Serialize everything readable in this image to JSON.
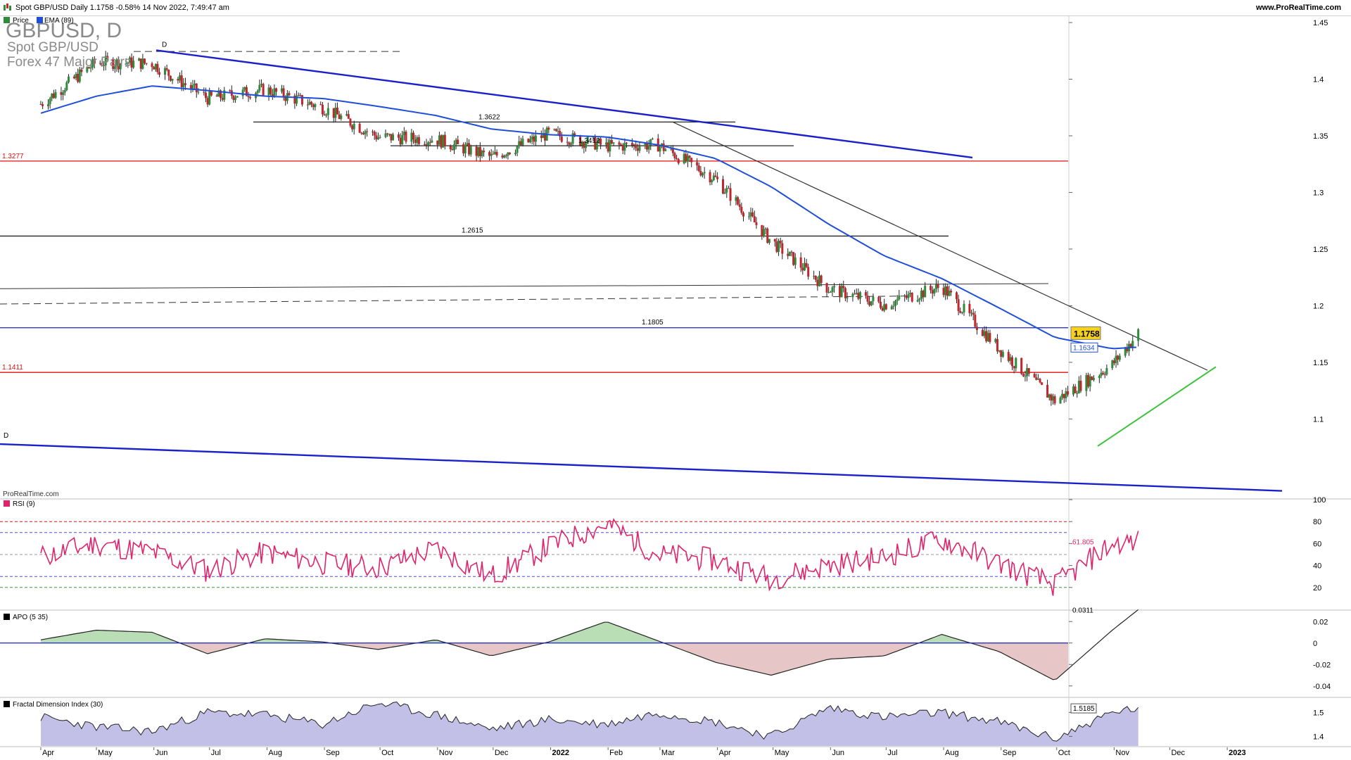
{
  "header": {
    "title": "Spot GBP/USD Daily 1.1758 -0.58% 14 Nov 2022, 7:49:47 am",
    "site": "www.ProRealTime.com"
  },
  "colors": {
    "up_candle": "#2e8b3a",
    "down_candle": "#c0262b",
    "ema": "#1f4fd8",
    "trendline_blue": "#1a21c8",
    "support_red": "#e01010",
    "green_trend": "#3ac23a",
    "rsi": "#e0246c",
    "apo_pos": "#b9ddb5",
    "apo_neg": "#e6c6c6",
    "fdi_fill": "#c2c0e6"
  },
  "chart_data": [
    {
      "type": "line",
      "panel": "price",
      "title_big": "GBPUSD, D",
      "subtitle": "Spot GBP/USD",
      "sub_subtitle": "Forex 47 Major Pairs",
      "legend": [
        {
          "label": "Price",
          "icon": "candle-icon"
        },
        {
          "label": "EMA (89)",
          "color": "#1f4fd8"
        }
      ],
      "x_tick_labels": [
        "Apr",
        "May",
        "Jun",
        "Jul",
        "Aug",
        "Sep",
        "Oct",
        "Nov",
        "Dec",
        "2022",
        "Feb",
        "Mar",
        "Apr",
        "May",
        "Jun",
        "Jul",
        "Aug",
        "Sep",
        "Oct",
        "Nov",
        "Dec",
        "2023"
      ],
      "y_ticks": [
        1.45,
        1.4,
        1.35,
        1.3,
        1.25,
        1.2,
        1.15,
        1.1
      ],
      "ylim": [
        1.03,
        1.455
      ],
      "last_price": "1.1758",
      "ema_value": "1.1634",
      "x_dates": [
        "2021-04-01",
        "2021-05-01",
        "2021-05-31",
        "2021-06-30",
        "2021-07-31",
        "2021-08-31",
        "2021-09-30",
        "2021-10-31",
        "2021-11-30",
        "2021-12-31",
        "2022-01-31",
        "2022-02-28",
        "2022-03-31",
        "2022-04-30",
        "2022-05-31",
        "2022-06-30",
        "2022-07-31",
        "2022-08-31",
        "2022-09-30",
        "2022-10-31",
        "2022-11-14"
      ],
      "price_close": [
        1.378,
        1.415,
        1.414,
        1.383,
        1.391,
        1.375,
        1.349,
        1.347,
        1.331,
        1.352,
        1.341,
        1.342,
        1.312,
        1.257,
        1.215,
        1.201,
        1.217,
        1.162,
        1.116,
        1.148,
        1.1758
      ],
      "ema_89": [
        1.37,
        1.385,
        1.394,
        1.39,
        1.385,
        1.383,
        1.376,
        1.368,
        1.356,
        1.351,
        1.349,
        1.342,
        1.33,
        1.305,
        1.272,
        1.244,
        1.224,
        1.198,
        1.172,
        1.162,
        1.1634
      ],
      "annotations": [
        {
          "label": "1.3622",
          "value": 1.3622
        },
        {
          "label": "1.3412",
          "value": 1.3412
        },
        {
          "label": "1.2615",
          "value": 1.2615
        },
        {
          "label": "1.1805",
          "value": 1.1805
        },
        {
          "label": "1.3277",
          "value": 1.3277
        },
        {
          "label": "1.1411",
          "value": 1.1411
        },
        {
          "label": "D",
          "value": 1.425
        },
        {
          "label": "D",
          "value": 1.08
        }
      ],
      "watermark": "ProRealTime.com"
    },
    {
      "type": "line",
      "panel": "rsi",
      "legend": "RSI (9)",
      "y_ticks": [
        100,
        80,
        60,
        40,
        20
      ],
      "ylim": [
        0,
        100
      ],
      "levels": [
        80,
        70,
        50,
        30,
        20
      ],
      "last_value": "61.805",
      "x_dates": [
        "2021-04-01",
        "2021-05-01",
        "2021-05-31",
        "2021-06-30",
        "2021-07-31",
        "2021-08-31",
        "2021-09-30",
        "2021-10-31",
        "2021-11-30",
        "2021-12-31",
        "2022-01-31",
        "2022-02-28",
        "2022-03-31",
        "2022-04-30",
        "2022-05-31",
        "2022-06-30",
        "2022-07-31",
        "2022-08-31",
        "2022-09-30",
        "2022-10-31",
        "2022-11-14"
      ],
      "values": [
        48,
        60,
        52,
        35,
        52,
        42,
        38,
        55,
        30,
        57,
        78,
        50,
        45,
        28,
        40,
        48,
        64,
        42,
        22,
        60,
        61.805
      ]
    },
    {
      "type": "area",
      "panel": "apo",
      "legend": "APO (5 35)",
      "y_ticks": [
        0.02,
        0,
        -0.02,
        -0.04
      ],
      "ylim": [
        -0.05,
        0.03
      ],
      "last_value": "0.0311",
      "x_dates": [
        "2021-04-01",
        "2021-05-01",
        "2021-05-31",
        "2021-06-30",
        "2021-07-31",
        "2021-08-31",
        "2021-09-30",
        "2021-10-31",
        "2021-11-30",
        "2021-12-31",
        "2022-01-31",
        "2022-02-28",
        "2022-03-31",
        "2022-04-30",
        "2022-05-31",
        "2022-06-30",
        "2022-07-31",
        "2022-08-31",
        "2022-09-30",
        "2022-10-31",
        "2022-11-14"
      ],
      "values": [
        0.003,
        0.012,
        0.01,
        -0.01,
        0.004,
        0.001,
        -0.006,
        0.003,
        -0.012,
        0.001,
        0.02,
        0.002,
        -0.018,
        -0.03,
        -0.015,
        -0.012,
        0.008,
        -0.008,
        -0.035,
        0.012,
        0.0311
      ]
    },
    {
      "type": "area",
      "panel": "fdi",
      "legend": "Fractal Dimension Index (30)",
      "y_ticks": [
        1.5,
        1.4
      ],
      "ylim": [
        1.36,
        1.56
      ],
      "last_value": "1.5185",
      "x_dates": [
        "2021-04-01",
        "2021-05-01",
        "2021-05-31",
        "2021-06-30",
        "2021-07-31",
        "2021-08-31",
        "2021-09-30",
        "2021-10-31",
        "2021-11-30",
        "2021-12-31",
        "2022-01-31",
        "2022-02-28",
        "2022-03-31",
        "2022-04-30",
        "2022-05-31",
        "2022-06-30",
        "2022-07-31",
        "2022-08-31",
        "2022-09-30",
        "2022-10-31",
        "2022-11-14"
      ],
      "values": [
        1.48,
        1.44,
        1.42,
        1.5,
        1.49,
        1.45,
        1.54,
        1.49,
        1.43,
        1.47,
        1.45,
        1.5,
        1.46,
        1.4,
        1.52,
        1.48,
        1.5,
        1.46,
        1.39,
        1.5,
        1.5185
      ]
    }
  ]
}
